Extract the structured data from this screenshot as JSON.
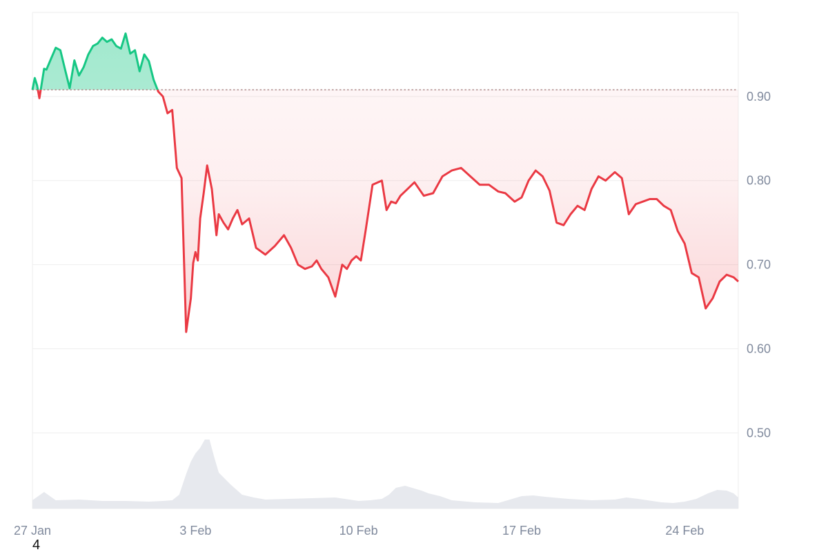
{
  "chart_data": {
    "type": "area",
    "x_tick_labels": [
      "27 Jan",
      "3 Feb",
      "10 Feb",
      "17 Feb",
      "24 Feb"
    ],
    "x_tick_days": [
      0,
      7,
      14,
      21,
      28
    ],
    "x_range_days": [
      0,
      30.3
    ],
    "y_tick_labels": [
      "0.90",
      "0.80",
      "0.70",
      "0.60",
      "0.50"
    ],
    "y_tick_values": [
      0.9,
      0.8,
      0.7,
      0.6,
      0.5
    ],
    "ylim": [
      0.41,
      1.0
    ],
    "grid": true,
    "baseline": 0.908,
    "baseline_style": "dotted",
    "colors": {
      "above": "#16c784",
      "below": "#ea3943",
      "grid": "#eeeeee",
      "axis_text": "#808a9d",
      "volume": "#e7e9ee"
    },
    "price_series": {
      "x_days": [
        0,
        0.1,
        0.2,
        0.3,
        0.5,
        0.6,
        0.8,
        1.0,
        1.2,
        1.4,
        1.6,
        1.8,
        2.0,
        2.2,
        2.4,
        2.6,
        2.8,
        3.0,
        3.2,
        3.4,
        3.6,
        3.8,
        4.0,
        4.2,
        4.4,
        4.6,
        4.8,
        5.0,
        5.2,
        5.4,
        5.6,
        5.8,
        6.0,
        6.2,
        6.4,
        6.6,
        6.8,
        6.9,
        7.0,
        7.1,
        7.2,
        7.35,
        7.5,
        7.7,
        7.9,
        8.0,
        8.2,
        8.4,
        8.6,
        8.8,
        9.0,
        9.3,
        9.6,
        10.0,
        10.4,
        10.8,
        11.1,
        11.4,
        11.7,
        12.0,
        12.2,
        12.4,
        12.7,
        13.0,
        13.3,
        13.5,
        13.7,
        13.9,
        14.1,
        14.3,
        14.6,
        15.0,
        15.2,
        15.4,
        15.6,
        15.8,
        16.1,
        16.4,
        16.8,
        17.2,
        17.6,
        18.0,
        18.4,
        18.8,
        19.2,
        19.6,
        20.0,
        20.3,
        20.7,
        21.0,
        21.3,
        21.6,
        21.9,
        22.2,
        22.5,
        22.8,
        23.1,
        23.4,
        23.7,
        24.0,
        24.3,
        24.6,
        25.0,
        25.3,
        25.6,
        25.9,
        26.2,
        26.5,
        26.8,
        27.1,
        27.4,
        27.7,
        28.0,
        28.3,
        28.6,
        28.9,
        29.2,
        29.5,
        29.8,
        30.1,
        30.3
      ],
      "y": [
        0.908,
        0.922,
        0.913,
        0.898,
        0.933,
        0.932,
        0.945,
        0.958,
        0.955,
        0.932,
        0.91,
        0.943,
        0.925,
        0.935,
        0.95,
        0.96,
        0.963,
        0.97,
        0.965,
        0.968,
        0.96,
        0.957,
        0.975,
        0.951,
        0.955,
        0.93,
        0.95,
        0.942,
        0.92,
        0.906,
        0.9,
        0.88,
        0.884,
        0.815,
        0.803,
        0.62,
        0.66,
        0.702,
        0.715,
        0.705,
        0.755,
        0.785,
        0.818,
        0.79,
        0.735,
        0.76,
        0.75,
        0.742,
        0.755,
        0.765,
        0.748,
        0.755,
        0.72,
        0.712,
        0.722,
        0.735,
        0.72,
        0.7,
        0.695,
        0.698,
        0.705,
        0.695,
        0.685,
        0.662,
        0.7,
        0.695,
        0.705,
        0.71,
        0.705,
        0.74,
        0.795,
        0.8,
        0.765,
        0.775,
        0.773,
        0.782,
        0.79,
        0.798,
        0.782,
        0.785,
        0.805,
        0.812,
        0.815,
        0.805,
        0.795,
        0.795,
        0.787,
        0.785,
        0.775,
        0.78,
        0.8,
        0.812,
        0.805,
        0.788,
        0.75,
        0.747,
        0.76,
        0.77,
        0.765,
        0.79,
        0.805,
        0.8,
        0.81,
        0.803,
        0.76,
        0.772,
        0.775,
        0.778,
        0.778,
        0.77,
        0.765,
        0.74,
        0.725,
        0.69,
        0.685,
        0.648,
        0.66,
        0.68,
        0.688,
        0.685,
        0.68
      ]
    },
    "volume_series": {
      "x_days": [
        0,
        0.5,
        1.0,
        2.0,
        3.0,
        4.0,
        5.0,
        5.6,
        6.0,
        6.3,
        6.6,
        6.8,
        7.0,
        7.2,
        7.4,
        7.6,
        7.8,
        8.0,
        8.5,
        9.0,
        9.5,
        10.0,
        11.0,
        12.0,
        13.0,
        14.0,
        14.5,
        15.0,
        15.3,
        15.6,
        16.0,
        16.3,
        16.7,
        17.0,
        17.5,
        18.0,
        19.0,
        20.0,
        20.5,
        21.0,
        21.5,
        22.0,
        23.0,
        24.0,
        25.0,
        25.5,
        26.0,
        27.0,
        27.5,
        28.0,
        28.5,
        29.0,
        29.4,
        29.8,
        30.1,
        30.3
      ],
      "v": [
        0.12,
        0.24,
        0.12,
        0.13,
        0.11,
        0.11,
        0.1,
        0.11,
        0.12,
        0.2,
        0.5,
        0.68,
        0.8,
        0.88,
        1.0,
        1.0,
        0.75,
        0.52,
        0.35,
        0.2,
        0.16,
        0.13,
        0.14,
        0.15,
        0.16,
        0.11,
        0.12,
        0.14,
        0.2,
        0.3,
        0.33,
        0.3,
        0.26,
        0.22,
        0.18,
        0.12,
        0.09,
        0.08,
        0.13,
        0.18,
        0.19,
        0.17,
        0.14,
        0.12,
        0.13,
        0.16,
        0.14,
        0.09,
        0.08,
        0.1,
        0.14,
        0.22,
        0.27,
        0.26,
        0.22,
        0.16
      ]
    }
  },
  "footer": {
    "stray_label": "4"
  }
}
